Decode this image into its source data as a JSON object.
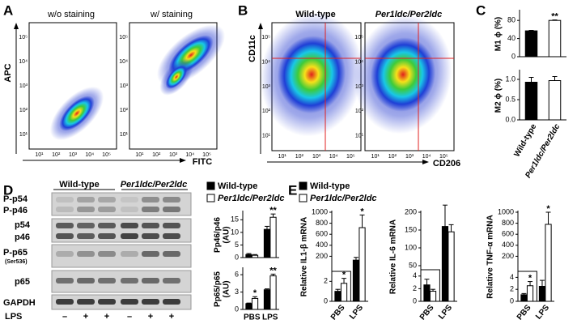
{
  "panel_labels": [
    "A",
    "B",
    "C",
    "D",
    "E"
  ],
  "flow_ticks": [
    "10¹",
    "10²",
    "10³",
    "10⁴",
    "10⁵"
  ],
  "panel_a": {
    "plots": [
      "w/o staining",
      "w/ staining"
    ],
    "y_axis": "APC",
    "x_axis": "FITC"
  },
  "panel_b": {
    "plots": [
      "Wild-type",
      "Per1ldc/Per2ldc"
    ],
    "y_axis": "CD11c",
    "x_axis": "CD206"
  },
  "panel_d": {
    "groups": [
      "Wild-type",
      "Per1ldc/Per2ldc"
    ],
    "blot_labels": [
      "P-p54",
      "P-p46",
      "p54",
      "p46",
      "P-p65",
      "(Ser536)",
      "p65",
      "GAPDH"
    ],
    "treatment": "LPS",
    "lanes": [
      "–",
      "+",
      "+",
      "–",
      "+",
      "+"
    ]
  },
  "chart_data": [
    {
      "type": "bar",
      "ylabel": [
        "M1 ϕ (%)"
      ],
      "values": [
        57,
        80
      ],
      "errors": [
        1,
        1
      ],
      "colors": [
        "#000000",
        "#ffffff"
      ],
      "ylim": [
        0,
        100
      ],
      "yticks": [
        0,
        40,
        80
      ],
      "annotations": [
        {
          "index": 1,
          "text": "**"
        }
      ]
    },
    {
      "type": "bar",
      "ylabel": [
        "M2 ϕ (%)"
      ],
      "categories": [
        "Wild-type",
        "Per1ldc/Per2ldc"
      ],
      "values": [
        0.93,
        0.97
      ],
      "errors": [
        0.12,
        0.1
      ],
      "colors": [
        "#000000",
        "#ffffff"
      ],
      "ylim": [
        0,
        1.2
      ],
      "yticks": [
        {
          "value": 0,
          "label": "0.0"
        },
        {
          "value": 0.5,
          "label": "0.5"
        },
        {
          "value": 1,
          "label": "1.0"
        }
      ]
    },
    {
      "type": "bar",
      "ylabel": [
        "Pp46/p46",
        "(AU)"
      ],
      "series": [
        {
          "name": "Wild-type",
          "color": "#000000",
          "values": [
            1.2,
            11.2
          ],
          "errors": [
            0.4,
            1.2
          ]
        },
        {
          "name": "Per1ldc/Per2ldc",
          "color": "#ffffff",
          "values": [
            0.9,
            16
          ],
          "errors": [
            0.3,
            1.3
          ]
        }
      ],
      "ylim": [
        0,
        18
      ],
      "yticks": [
        0,
        5,
        10,
        15
      ],
      "annotations": [
        {
          "category": 1,
          "series": 1,
          "text": "**"
        }
      ]
    },
    {
      "type": "bar",
      "ylabel": [
        "Pp65/p65",
        "(AU)"
      ],
      "categories": [
        "PBS",
        "LPS"
      ],
      "series": [
        {
          "color": "#000000",
          "values": [
            1.0,
            3.4
          ],
          "errors": [
            0.1,
            0.15
          ]
        },
        {
          "color": "#ffffff",
          "values": [
            1.9,
            5.8
          ],
          "errors": [
            0.3,
            0.3
          ]
        }
      ],
      "ylim": [
        0,
        7
      ],
      "yticks": [
        0,
        3,
        6
      ],
      "annotations": [
        {
          "category": 0,
          "series": 1,
          "text": "*"
        },
        {
          "category": 1,
          "series": 1,
          "text": "**"
        }
      ]
    },
    {
      "type": "bar",
      "ylabel": [
        "Relative IL1-β mRNA"
      ],
      "categories": [
        "PBS",
        "LPS"
      ],
      "series": [
        {
          "name": "Wild-type",
          "color": "#000000",
          "values": [
            1.0,
            130
          ],
          "errors": [
            0.2,
            50
          ]
        },
        {
          "name": "Per1ldc/Per2ldc",
          "color": "#ffffff",
          "values": [
            1.8,
            720
          ],
          "errors": [
            0.5,
            230
          ]
        }
      ],
      "ylim": [
        0,
        1000
      ],
      "yticks": [
        200,
        400,
        600,
        800,
        1000
      ],
      "inset_ylim": [
        0,
        3
      ],
      "inset_yticks": [
        0,
        2
      ],
      "annotations": [
        {
          "category": 0,
          "series": 1,
          "text": "*"
        },
        {
          "category": 1,
          "series": 1,
          "text": "*"
        }
      ]
    },
    {
      "type": "bar",
      "ylabel": [
        "Relative IL-6 mRNA"
      ],
      "categories": [
        "PBS",
        "LPS"
      ],
      "series": [
        {
          "color": "#000000",
          "values": [
            2.6,
            160
          ],
          "errors": [
            0.9,
            60
          ]
        },
        {
          "color": "#ffffff",
          "values": [
            1.6,
            145
          ],
          "errors": [
            0.3,
            20
          ]
        }
      ],
      "ylim": [
        0,
        200
      ],
      "yticks": [
        50,
        100,
        150,
        200
      ],
      "inset_ylim": [
        0,
        5
      ],
      "inset_yticks": [
        0,
        2,
        4
      ]
    },
    {
      "type": "bar",
      "ylabel": [
        "Relative TNF-α mRNA"
      ],
      "categories": [
        "PBS",
        "LPS"
      ],
      "series": [
        {
          "color": "#000000",
          "values": [
            1.1,
            2.5
          ],
          "errors": [
            0.2,
            1.0
          ]
        },
        {
          "color": "#ffffff",
          "values": [
            2.6,
            780
          ],
          "errors": [
            0.7,
            220
          ]
        }
      ],
      "ylim": [
        0,
        1000
      ],
      "yticks": [
        200,
        400,
        600,
        800,
        1000
      ],
      "inset_ylim": [
        0,
        5
      ],
      "inset_yticks": [
        0,
        2,
        4
      ],
      "annotations": [
        {
          "category": 0,
          "series": 1,
          "text": "*"
        },
        {
          "category": 1,
          "series": 1,
          "text": "*"
        }
      ]
    }
  ]
}
